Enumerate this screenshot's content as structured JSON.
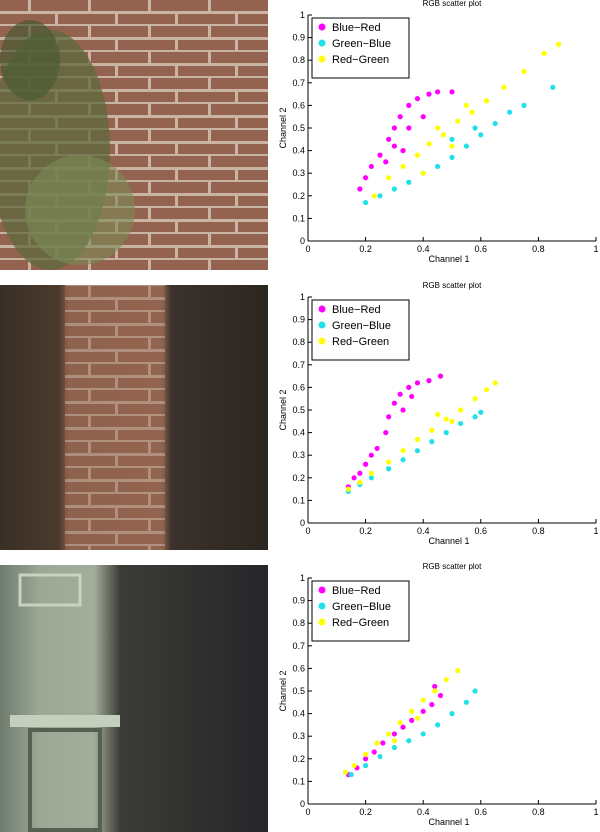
{
  "chart_data": [
    {
      "type": "scatter",
      "title": "RGB scatter plot",
      "xlabel": "Channel 1",
      "ylabel": "Channel 2",
      "xlim": [
        0,
        1
      ],
      "ylim": [
        0,
        1
      ],
      "xticks": [
        0,
        0.2,
        0.4,
        0.6,
        0.8,
        1
      ],
      "yticks": [
        0,
        0.1,
        0.2,
        0.3,
        0.4,
        0.5,
        0.6,
        0.7,
        0.8,
        0.9,
        1
      ],
      "legend": "upper left",
      "series": [
        {
          "name": "Blue−Red",
          "color": "#ff00ff",
          "x": [
            0.18,
            0.2,
            0.22,
            0.25,
            0.28,
            0.3,
            0.32,
            0.35,
            0.38,
            0.42,
            0.45,
            0.5,
            0.3,
            0.35,
            0.4,
            0.27,
            0.33
          ],
          "values": [
            0.23,
            0.28,
            0.33,
            0.38,
            0.45,
            0.5,
            0.55,
            0.6,
            0.63,
            0.65,
            0.66,
            0.66,
            0.42,
            0.5,
            0.55,
            0.35,
            0.4
          ]
        },
        {
          "name": "Green−Blue",
          "color": "#22e0ea",
          "x": [
            0.2,
            0.25,
            0.3,
            0.35,
            0.4,
            0.45,
            0.5,
            0.55,
            0.6,
            0.65,
            0.7,
            0.75,
            0.85,
            0.58,
            0.5
          ],
          "values": [
            0.17,
            0.2,
            0.23,
            0.26,
            0.3,
            0.33,
            0.37,
            0.42,
            0.47,
            0.52,
            0.57,
            0.6,
            0.68,
            0.5,
            0.45
          ]
        },
        {
          "name": "Red−Green",
          "color": "#ffff00",
          "x": [
            0.23,
            0.28,
            0.33,
            0.38,
            0.42,
            0.47,
            0.52,
            0.57,
            0.62,
            0.68,
            0.75,
            0.82,
            0.87,
            0.4,
            0.5,
            0.45,
            0.55
          ],
          "values": [
            0.2,
            0.28,
            0.33,
            0.38,
            0.43,
            0.47,
            0.53,
            0.57,
            0.62,
            0.68,
            0.75,
            0.83,
            0.87,
            0.3,
            0.42,
            0.5,
            0.6
          ]
        }
      ]
    },
    {
      "type": "scatter",
      "title": "RGB scatter plot",
      "xlabel": "Channel 1",
      "ylabel": "Channel 2",
      "xlim": [
        0,
        1
      ],
      "ylim": [
        0,
        1
      ],
      "xticks": [
        0,
        0.2,
        0.4,
        0.6,
        0.8,
        1
      ],
      "yticks": [
        0,
        0.1,
        0.2,
        0.3,
        0.4,
        0.5,
        0.6,
        0.7,
        0.8,
        0.9,
        1
      ],
      "legend": "upper left",
      "series": [
        {
          "name": "Blue−Red",
          "color": "#ff00ff",
          "x": [
            0.14,
            0.16,
            0.18,
            0.2,
            0.22,
            0.24,
            0.27,
            0.28,
            0.3,
            0.32,
            0.35,
            0.38,
            0.42,
            0.46,
            0.33,
            0.36
          ],
          "values": [
            0.16,
            0.2,
            0.22,
            0.26,
            0.3,
            0.33,
            0.4,
            0.47,
            0.53,
            0.57,
            0.6,
            0.62,
            0.63,
            0.65,
            0.5,
            0.56
          ]
        },
        {
          "name": "Green−Blue",
          "color": "#22e0ea",
          "x": [
            0.14,
            0.18,
            0.22,
            0.28,
            0.33,
            0.38,
            0.43,
            0.48,
            0.53,
            0.58,
            0.6
          ],
          "values": [
            0.14,
            0.17,
            0.2,
            0.24,
            0.28,
            0.32,
            0.36,
            0.4,
            0.44,
            0.47,
            0.49
          ]
        },
        {
          "name": "Red−Green",
          "color": "#ffff00",
          "x": [
            0.14,
            0.18,
            0.22,
            0.28,
            0.33,
            0.38,
            0.43,
            0.48,
            0.53,
            0.58,
            0.62,
            0.65,
            0.45,
            0.5
          ],
          "values": [
            0.15,
            0.18,
            0.22,
            0.27,
            0.32,
            0.37,
            0.41,
            0.46,
            0.5,
            0.55,
            0.59,
            0.62,
            0.48,
            0.45
          ]
        }
      ]
    },
    {
      "type": "scatter",
      "title": "RGB scatter plot",
      "xlabel": "Channel 1",
      "ylabel": "Channel 2",
      "xlim": [
        0,
        1
      ],
      "ylim": [
        0,
        1
      ],
      "xticks": [
        0,
        0.2,
        0.4,
        0.6,
        0.8,
        1
      ],
      "yticks": [
        0,
        0.1,
        0.2,
        0.3,
        0.4,
        0.5,
        0.6,
        0.7,
        0.8,
        0.9,
        1
      ],
      "legend": "upper left",
      "series": [
        {
          "name": "Blue−Red",
          "color": "#ff00ff",
          "x": [
            0.14,
            0.17,
            0.2,
            0.23,
            0.26,
            0.3,
            0.33,
            0.36,
            0.4,
            0.43,
            0.46,
            0.44
          ],
          "values": [
            0.13,
            0.16,
            0.2,
            0.23,
            0.27,
            0.31,
            0.34,
            0.37,
            0.41,
            0.44,
            0.48,
            0.52
          ]
        },
        {
          "name": "Green−Blue",
          "color": "#22e0ea",
          "x": [
            0.15,
            0.2,
            0.25,
            0.3,
            0.35,
            0.4,
            0.45,
            0.5,
            0.55,
            0.58
          ],
          "values": [
            0.13,
            0.17,
            0.21,
            0.25,
            0.28,
            0.31,
            0.35,
            0.4,
            0.45,
            0.5
          ]
        },
        {
          "name": "Red−Green",
          "color": "#ffff00",
          "x": [
            0.13,
            0.16,
            0.2,
            0.24,
            0.28,
            0.32,
            0.36,
            0.4,
            0.44,
            0.48,
            0.52,
            0.38,
            0.3
          ],
          "values": [
            0.14,
            0.17,
            0.22,
            0.27,
            0.31,
            0.36,
            0.41,
            0.46,
            0.5,
            0.55,
            0.59,
            0.38,
            0.28
          ]
        }
      ]
    }
  ]
}
